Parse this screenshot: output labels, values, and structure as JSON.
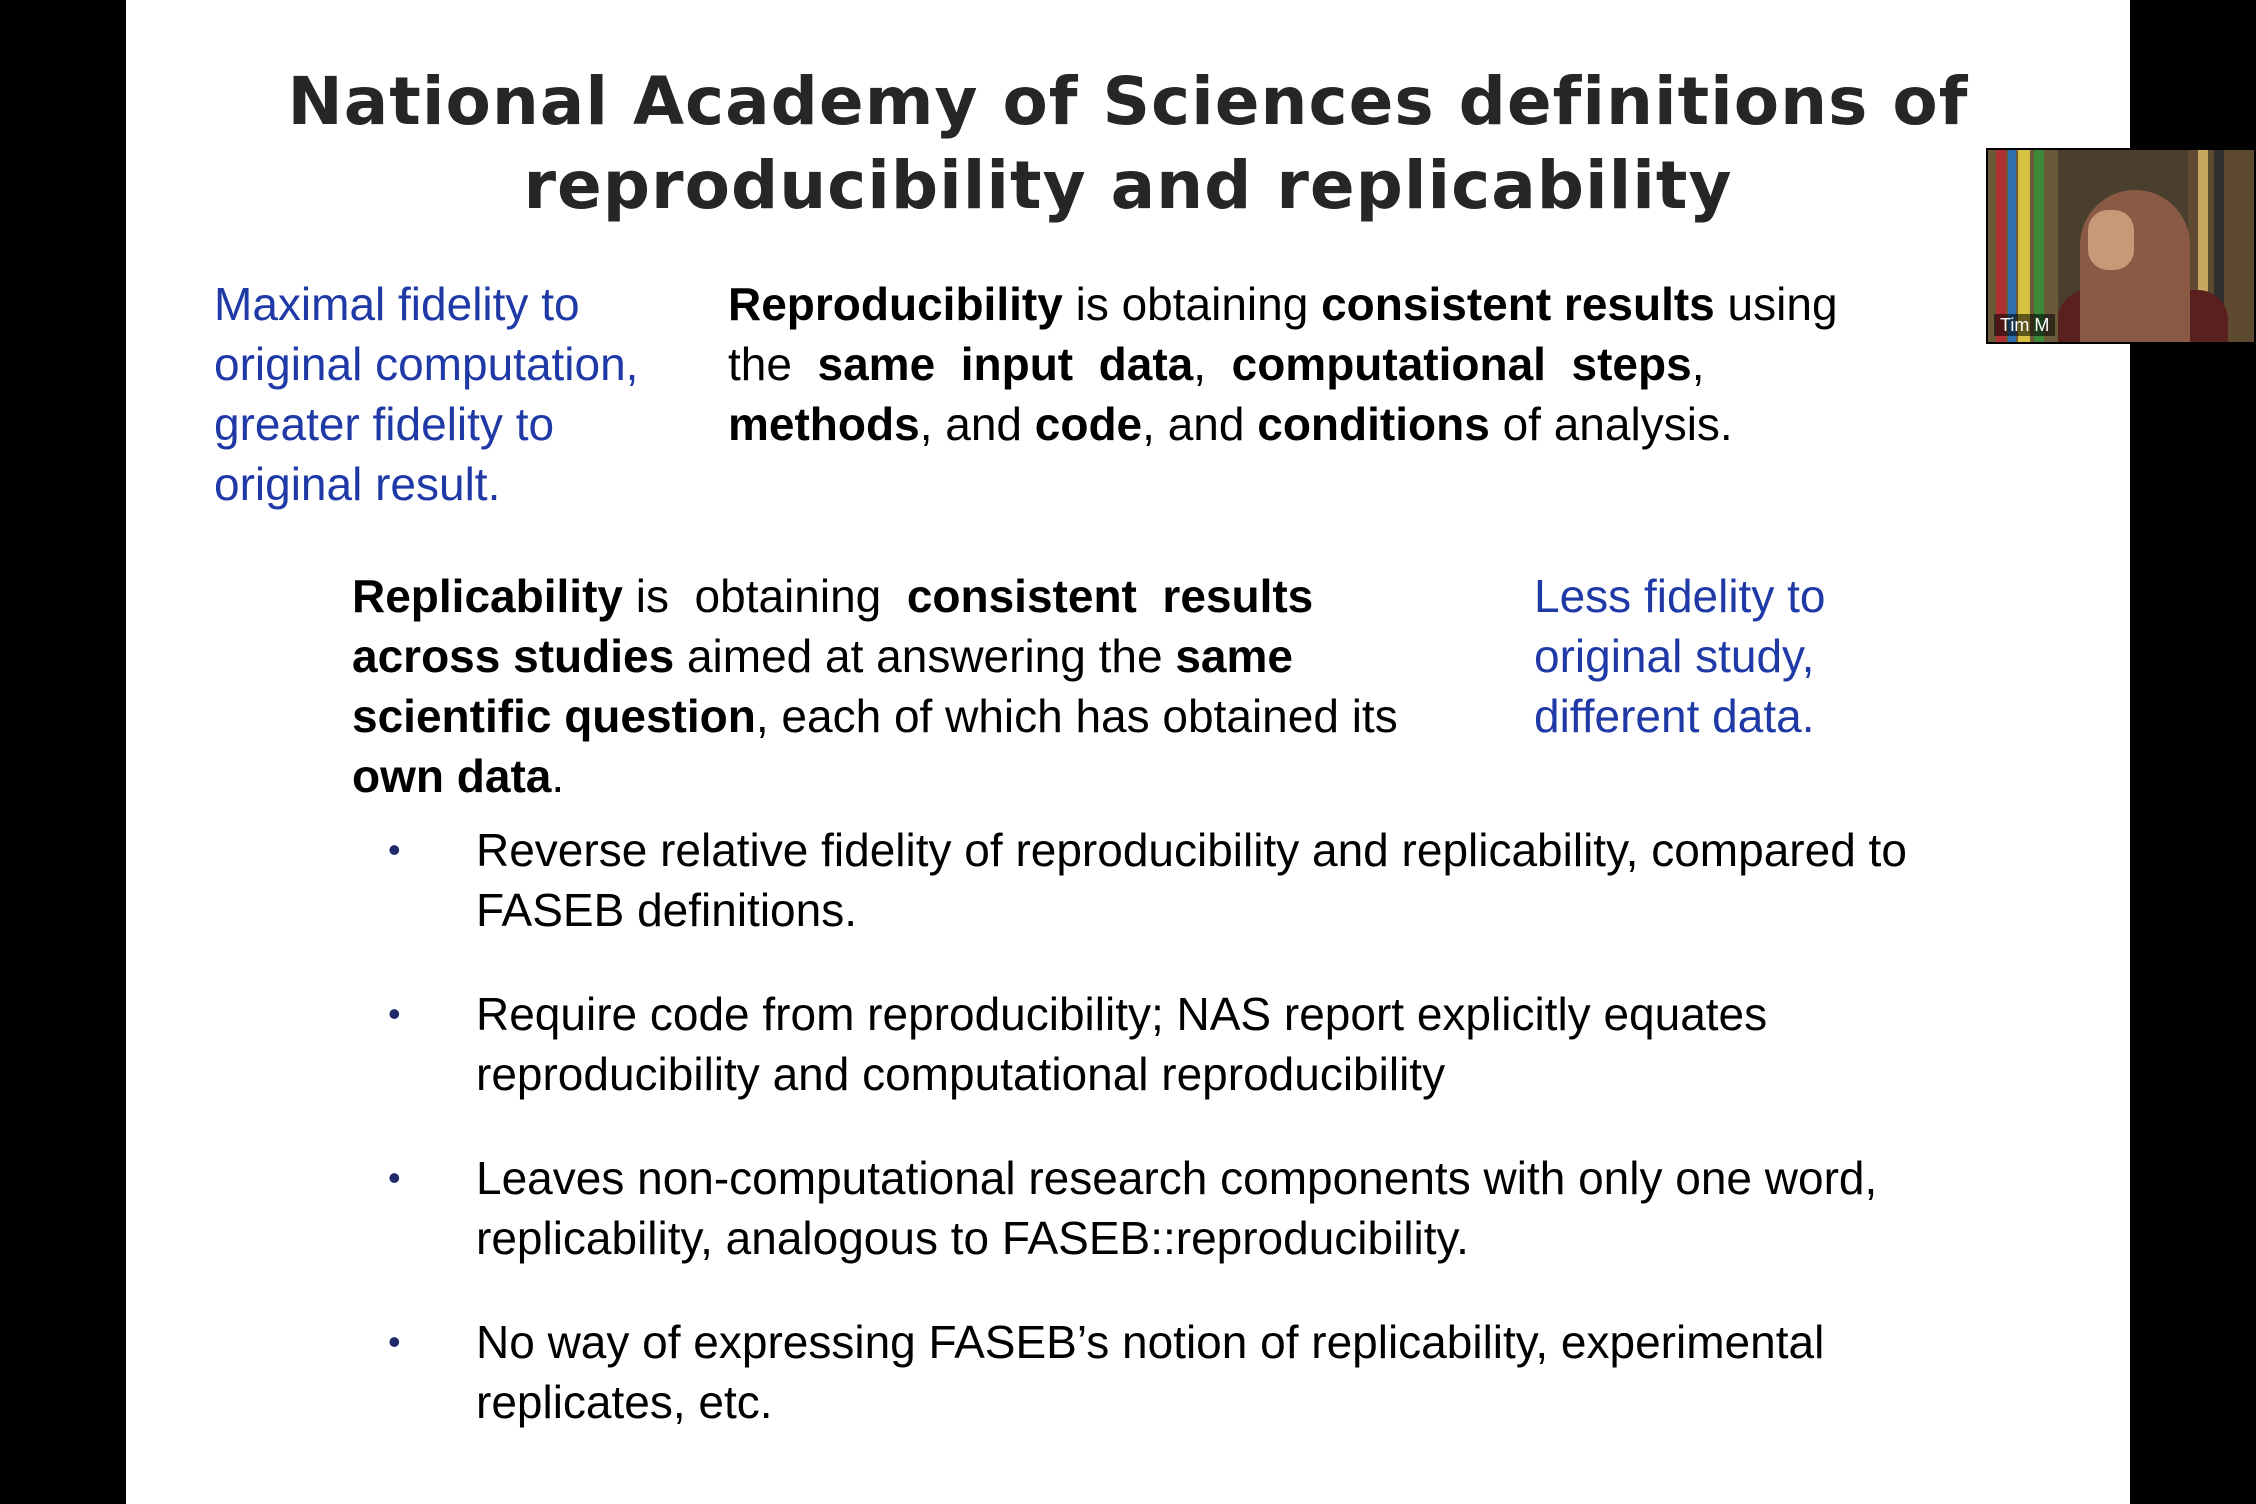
{
  "slide": {
    "title_line1": "National Academy of Sciences definitions of",
    "title_line2": "reproducibility and replicability",
    "left_note": [
      "Maximal fidelity to",
      "original computation,",
      "greater fidelity to",
      "original result."
    ],
    "reproducibility": {
      "line1": [
        {
          "t": "Reproducibility",
          "b": true
        },
        {
          "t": " is obtaining ",
          "b": false
        },
        {
          "t": "consistent results",
          "b": true
        },
        {
          "t": " using",
          "b": false
        }
      ],
      "line2": [
        {
          "t": "the  ",
          "b": false
        },
        {
          "t": "same  input  data",
          "b": true
        },
        {
          "t": ",  ",
          "b": false
        },
        {
          "t": "computational  steps",
          "b": true
        },
        {
          "t": ",",
          "b": false
        }
      ],
      "line3": [
        {
          "t": "methods",
          "b": true
        },
        {
          "t": ", and ",
          "b": false
        },
        {
          "t": "code",
          "b": true
        },
        {
          "t": ", and ",
          "b": false
        },
        {
          "t": "conditions",
          "b": true
        },
        {
          "t": " of analysis.",
          "b": false
        }
      ]
    },
    "replicability": {
      "line1": [
        {
          "t": "Replicability",
          "b": true
        },
        {
          "t": " is  obtaining  ",
          "b": false
        },
        {
          "t": "consistent  results",
          "b": true
        }
      ],
      "line2": [
        {
          "t": "across studies",
          "b": true
        },
        {
          "t": " aimed at answering the ",
          "b": false
        },
        {
          "t": "same",
          "b": true
        }
      ],
      "line3": [
        {
          "t": "scientific question",
          "b": true
        },
        {
          "t": ", each of which has obtained its",
          "b": false
        }
      ],
      "line4": [
        {
          "t": "own data",
          "b": true
        },
        {
          "t": ".",
          "b": false
        }
      ]
    },
    "right_note": [
      "Less fidelity to",
      "original study,",
      "different data."
    ],
    "bullets": [
      {
        "lines": [
          "Reverse relative fidelity of reproducibility and replicability, compared to",
          "FASEB definitions."
        ]
      },
      {
        "lines": [
          "Require code from reproducibility; NAS report explicitly equates",
          "reproducibility and computational reproducibility"
        ]
      },
      {
        "lines": [
          "Leaves non-computational research components with only one word,",
          "replicability, analogous to FASEB::reproducibility."
        ]
      },
      {
        "lines": [
          "No way of expressing FASEB’s notion of replicability, experimental",
          "replicates, etc."
        ]
      }
    ],
    "bullet_glyph": "•"
  },
  "video": {
    "participant_name": "Tim M"
  },
  "colors": {
    "accent_blue": "#1f3aa6",
    "bullet": "#1f2a6b",
    "title": "#262626"
  }
}
